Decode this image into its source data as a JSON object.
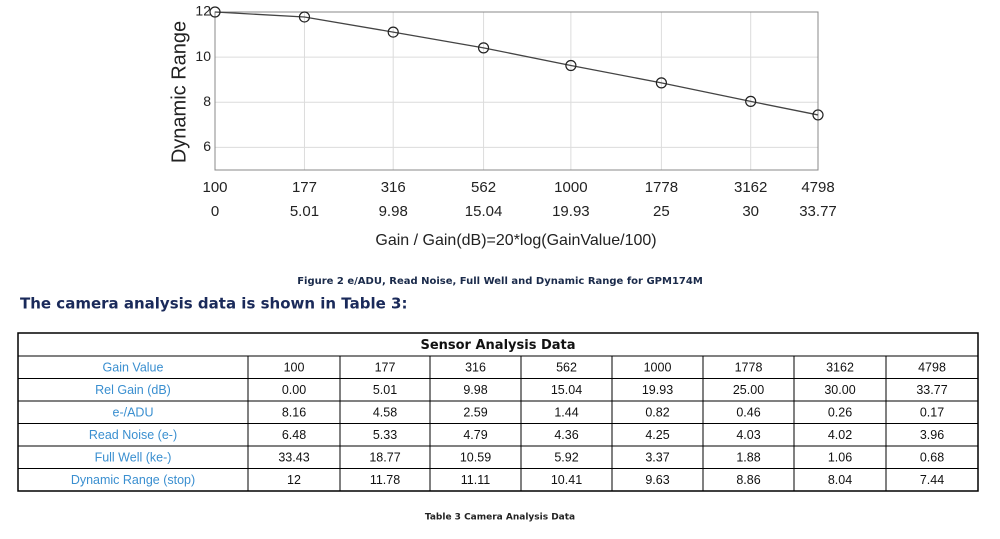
{
  "chart_data": {
    "type": "line",
    "y_label": "Dynamic Range",
    "x_label": "Gain / Gain(dB)=20*log(GainValue/100)",
    "x": [
      0,
      5.01,
      9.98,
      15.04,
      19.93,
      25,
      30,
      33.77
    ],
    "values": [
      12,
      11.78,
      11.11,
      10.41,
      9.63,
      8.86,
      8.04,
      7.44
    ],
    "color": "#444444",
    "xlim": [
      0,
      33.77
    ],
    "xticks": [
      0,
      5.01,
      9.98,
      15.04,
      19.93,
      25,
      30,
      33.77
    ],
    "gain_ticks": [
      100,
      177,
      316,
      562,
      1000,
      1778,
      3162,
      4798
    ],
    "ylim": [
      5,
      12
    ],
    "yticks": [
      6,
      8,
      10,
      12
    ],
    "grid": true
  },
  "figure_caption": "Figure 2 e/ADU, Read Noise, Full Well and Dynamic Range for GPM174M",
  "intro": "The camera analysis data is shown in Table 3:",
  "table": {
    "title": "Sensor Analysis Data",
    "rows": [
      [
        "Gain Value",
        "100",
        "177",
        "316",
        "562",
        "1000",
        "1778",
        "3162",
        "4798"
      ],
      [
        "Rel Gain (dB)",
        "0.00",
        "5.01",
        "9.98",
        "15.04",
        "19.93",
        "25.00",
        "30.00",
        "33.77"
      ],
      [
        "e-/ADU",
        "8.16",
        "4.58",
        "2.59",
        "1.44",
        "0.82",
        "0.46",
        "0.26",
        "0.17"
      ],
      [
        "Read Noise (e-)",
        "6.48",
        "5.33",
        "4.79",
        "4.36",
        "4.25",
        "4.03",
        "4.02",
        "3.96"
      ],
      [
        "Full Well (ke-)",
        "33.43",
        "18.77",
        "10.59",
        "5.92",
        "3.37",
        "1.88",
        "1.06",
        "0.68"
      ],
      [
        "Dynamic Range (stop)",
        "12",
        "11.78",
        "11.11",
        "10.41",
        "9.63",
        "8.86",
        "8.04",
        "7.44"
      ]
    ]
  },
  "table_caption": "Table 3 Camera Analysis Data"
}
